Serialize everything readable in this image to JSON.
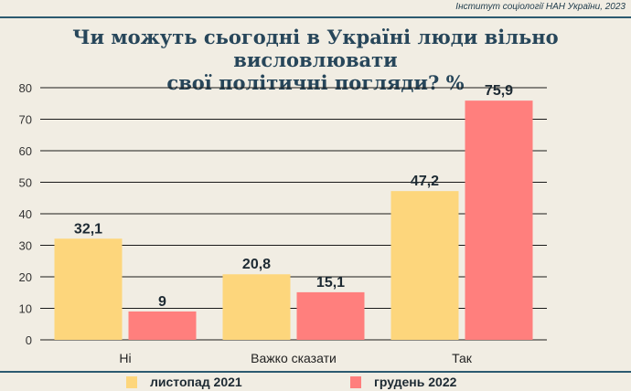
{
  "source": "Інститут соціології НАН України, 2023",
  "title_lines": [
    "Чи можуть сьогодні в Україні люди вільно висловлювати",
    "свої політичні погляди? %"
  ],
  "colors": {
    "series1": "#fdd67c",
    "series2": "#ff7f7d",
    "text": "#1d2a33",
    "accent": "#2c5a70"
  },
  "chart_data": {
    "type": "bar",
    "title": "Чи можуть сьогодні в Україні люди вільно висловлювати свої політичні погляди? %",
    "categories": [
      "Ні",
      "Важко сказати",
      "Так"
    ],
    "series": [
      {
        "name": "листопад 2021",
        "values": [
          32.1,
          20.8,
          47.2
        ],
        "labels": [
          "32,1",
          "20,8",
          "47,2"
        ]
      },
      {
        "name": "грудень 2022",
        "values": [
          9,
          15.1,
          75.9
        ],
        "labels": [
          "9",
          "15,1",
          "75,9"
        ]
      }
    ],
    "yticks": [
      "0",
      "10",
      "20",
      "30",
      "40",
      "50",
      "60",
      "70",
      "80"
    ],
    "ylim": [
      0,
      80
    ],
    "grid": true,
    "legend_position": "bottom"
  },
  "legend": [
    {
      "label": "листопад 2021"
    },
    {
      "label": "грудень 2022"
    }
  ]
}
